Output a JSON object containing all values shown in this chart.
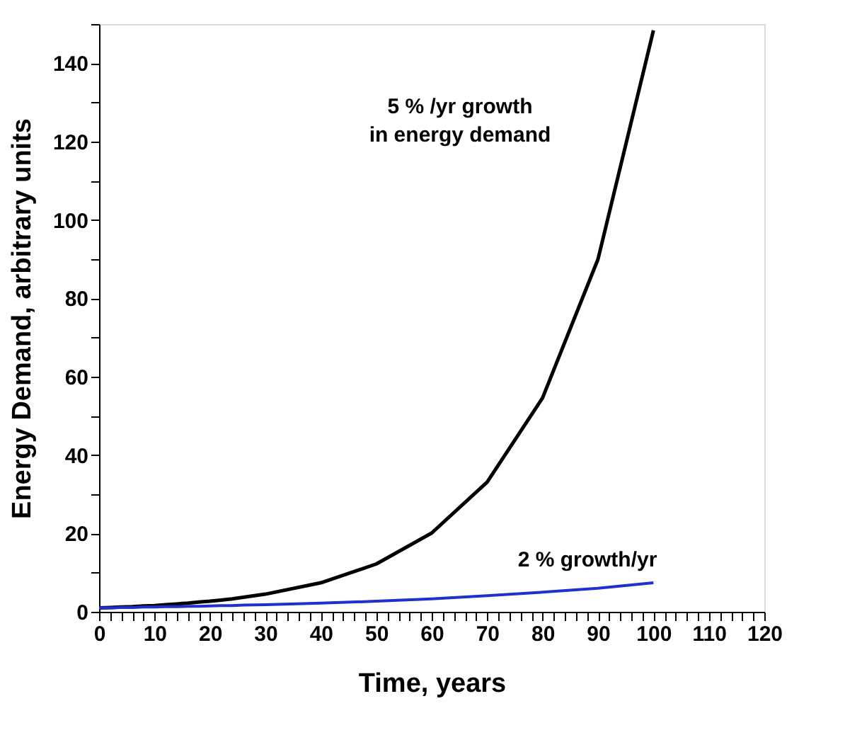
{
  "chart_data": {
    "type": "line",
    "xlabel": "Time, years",
    "ylabel": "Energy Demand, arbitrary units",
    "x": [
      0,
      2,
      4,
      6,
      8,
      10,
      12,
      14,
      16,
      18,
      20,
      22,
      24,
      26,
      30,
      40,
      50,
      60,
      70,
      80,
      90,
      100
    ],
    "series": [
      {
        "color": "#000000",
        "values": [
          1,
          1.1,
          1.2,
          1.3,
          1.5,
          1.6,
          1.8,
          2,
          2.2,
          2.5,
          2.7,
          3,
          3.3,
          3.7,
          4.5,
          7.4,
          12.2,
          20.1,
          33.1,
          54.6,
          90,
          148.4
        ]
      },
      {
        "color": "#1f2fd0",
        "values": [
          1,
          1,
          1.1,
          1.1,
          1.2,
          1.2,
          1.3,
          1.3,
          1.4,
          1.4,
          1.5,
          1.6,
          1.6,
          1.7,
          1.8,
          2.2,
          2.7,
          3.3,
          4.1,
          5,
          6,
          7.4
        ]
      }
    ],
    "xlim": [
      0,
      120
    ],
    "xticks": [
      0,
      {
        "value": 2,
        "label": null
      },
      {
        "value": 4,
        "label": null
      },
      {
        "value": 6,
        "label": null
      },
      {
        "value": 8,
        "label": null
      },
      10,
      {
        "value": 12,
        "label": null
      },
      {
        "value": 14,
        "label": null
      },
      {
        "value": 16,
        "label": null
      },
      {
        "value": 18,
        "label": null
      },
      20,
      {
        "value": 22,
        "label": null
      },
      {
        "value": 24,
        "label": null
      },
      {
        "value": 26,
        "label": null
      },
      {
        "value": 28,
        "label": null
      },
      30,
      {
        "value": 32,
        "label": null
      },
      {
        "value": 34,
        "label": null
      },
      {
        "value": 36,
        "label": null
      },
      {
        "value": 38,
        "label": null
      },
      40,
      {
        "value": 42,
        "label": null
      },
      {
        "value": 44,
        "label": null
      },
      {
        "value": 46,
        "label": null
      },
      {
        "value": 48,
        "label": null
      },
      50,
      {
        "value": 52,
        "label": null
      },
      {
        "value": 54,
        "label": null
      },
      {
        "value": 56,
        "label": null
      },
      {
        "value": 58,
        "label": null
      },
      60,
      {
        "value": 62,
        "label": null
      },
      {
        "value": 64,
        "label": null
      },
      {
        "value": 66,
        "label": null
      },
      {
        "value": 68,
        "label": null
      },
      70,
      {
        "value": 72,
        "label": null
      },
      {
        "value": 74,
        "label": null
      },
      {
        "value": 76,
        "label": null
      },
      {
        "value": 78,
        "label": null
      },
      80,
      {
        "value": 82,
        "label": null
      },
      {
        "value": 84,
        "label": null
      },
      {
        "value": 86,
        "label": null
      },
      {
        "value": 88,
        "label": null
      },
      90,
      {
        "value": 92,
        "label": null
      },
      {
        "value": 94,
        "label": null
      },
      {
        "value": 96,
        "label": null
      },
      {
        "value": 98,
        "label": null
      },
      100,
      {
        "value": 102,
        "label": null
      },
      {
        "value": 104,
        "label": null
      },
      {
        "value": 106,
        "label": null
      },
      {
        "value": 108,
        "label": null
      },
      110,
      {
        "value": 112,
        "label": null
      },
      {
        "value": 114,
        "label": null
      },
      {
        "value": 116,
        "label": null
      },
      {
        "value": 118,
        "label": null
      },
      120
    ],
    "ylim": [
      0,
      150
    ],
    "yticks": [
      0,
      {
        "value": 10,
        "label": null
      },
      20,
      {
        "value": 30,
        "label": null
      },
      40,
      {
        "value": 50,
        "label": null
      },
      60,
      {
        "value": 70,
        "label": null
      },
      80,
      {
        "value": 90,
        "label": null
      },
      100,
      {
        "value": 110,
        "label": null
      },
      120,
      {
        "value": 130,
        "label": null
      },
      140,
      {
        "value": 150,
        "label": null
      }
    ],
    "grid": false,
    "legend": false,
    "marker": "none",
    "line_style": "solid",
    "annotations": [
      "5 % /yr growth\nin energy demand",
      "2 % growth/yr"
    ]
  }
}
